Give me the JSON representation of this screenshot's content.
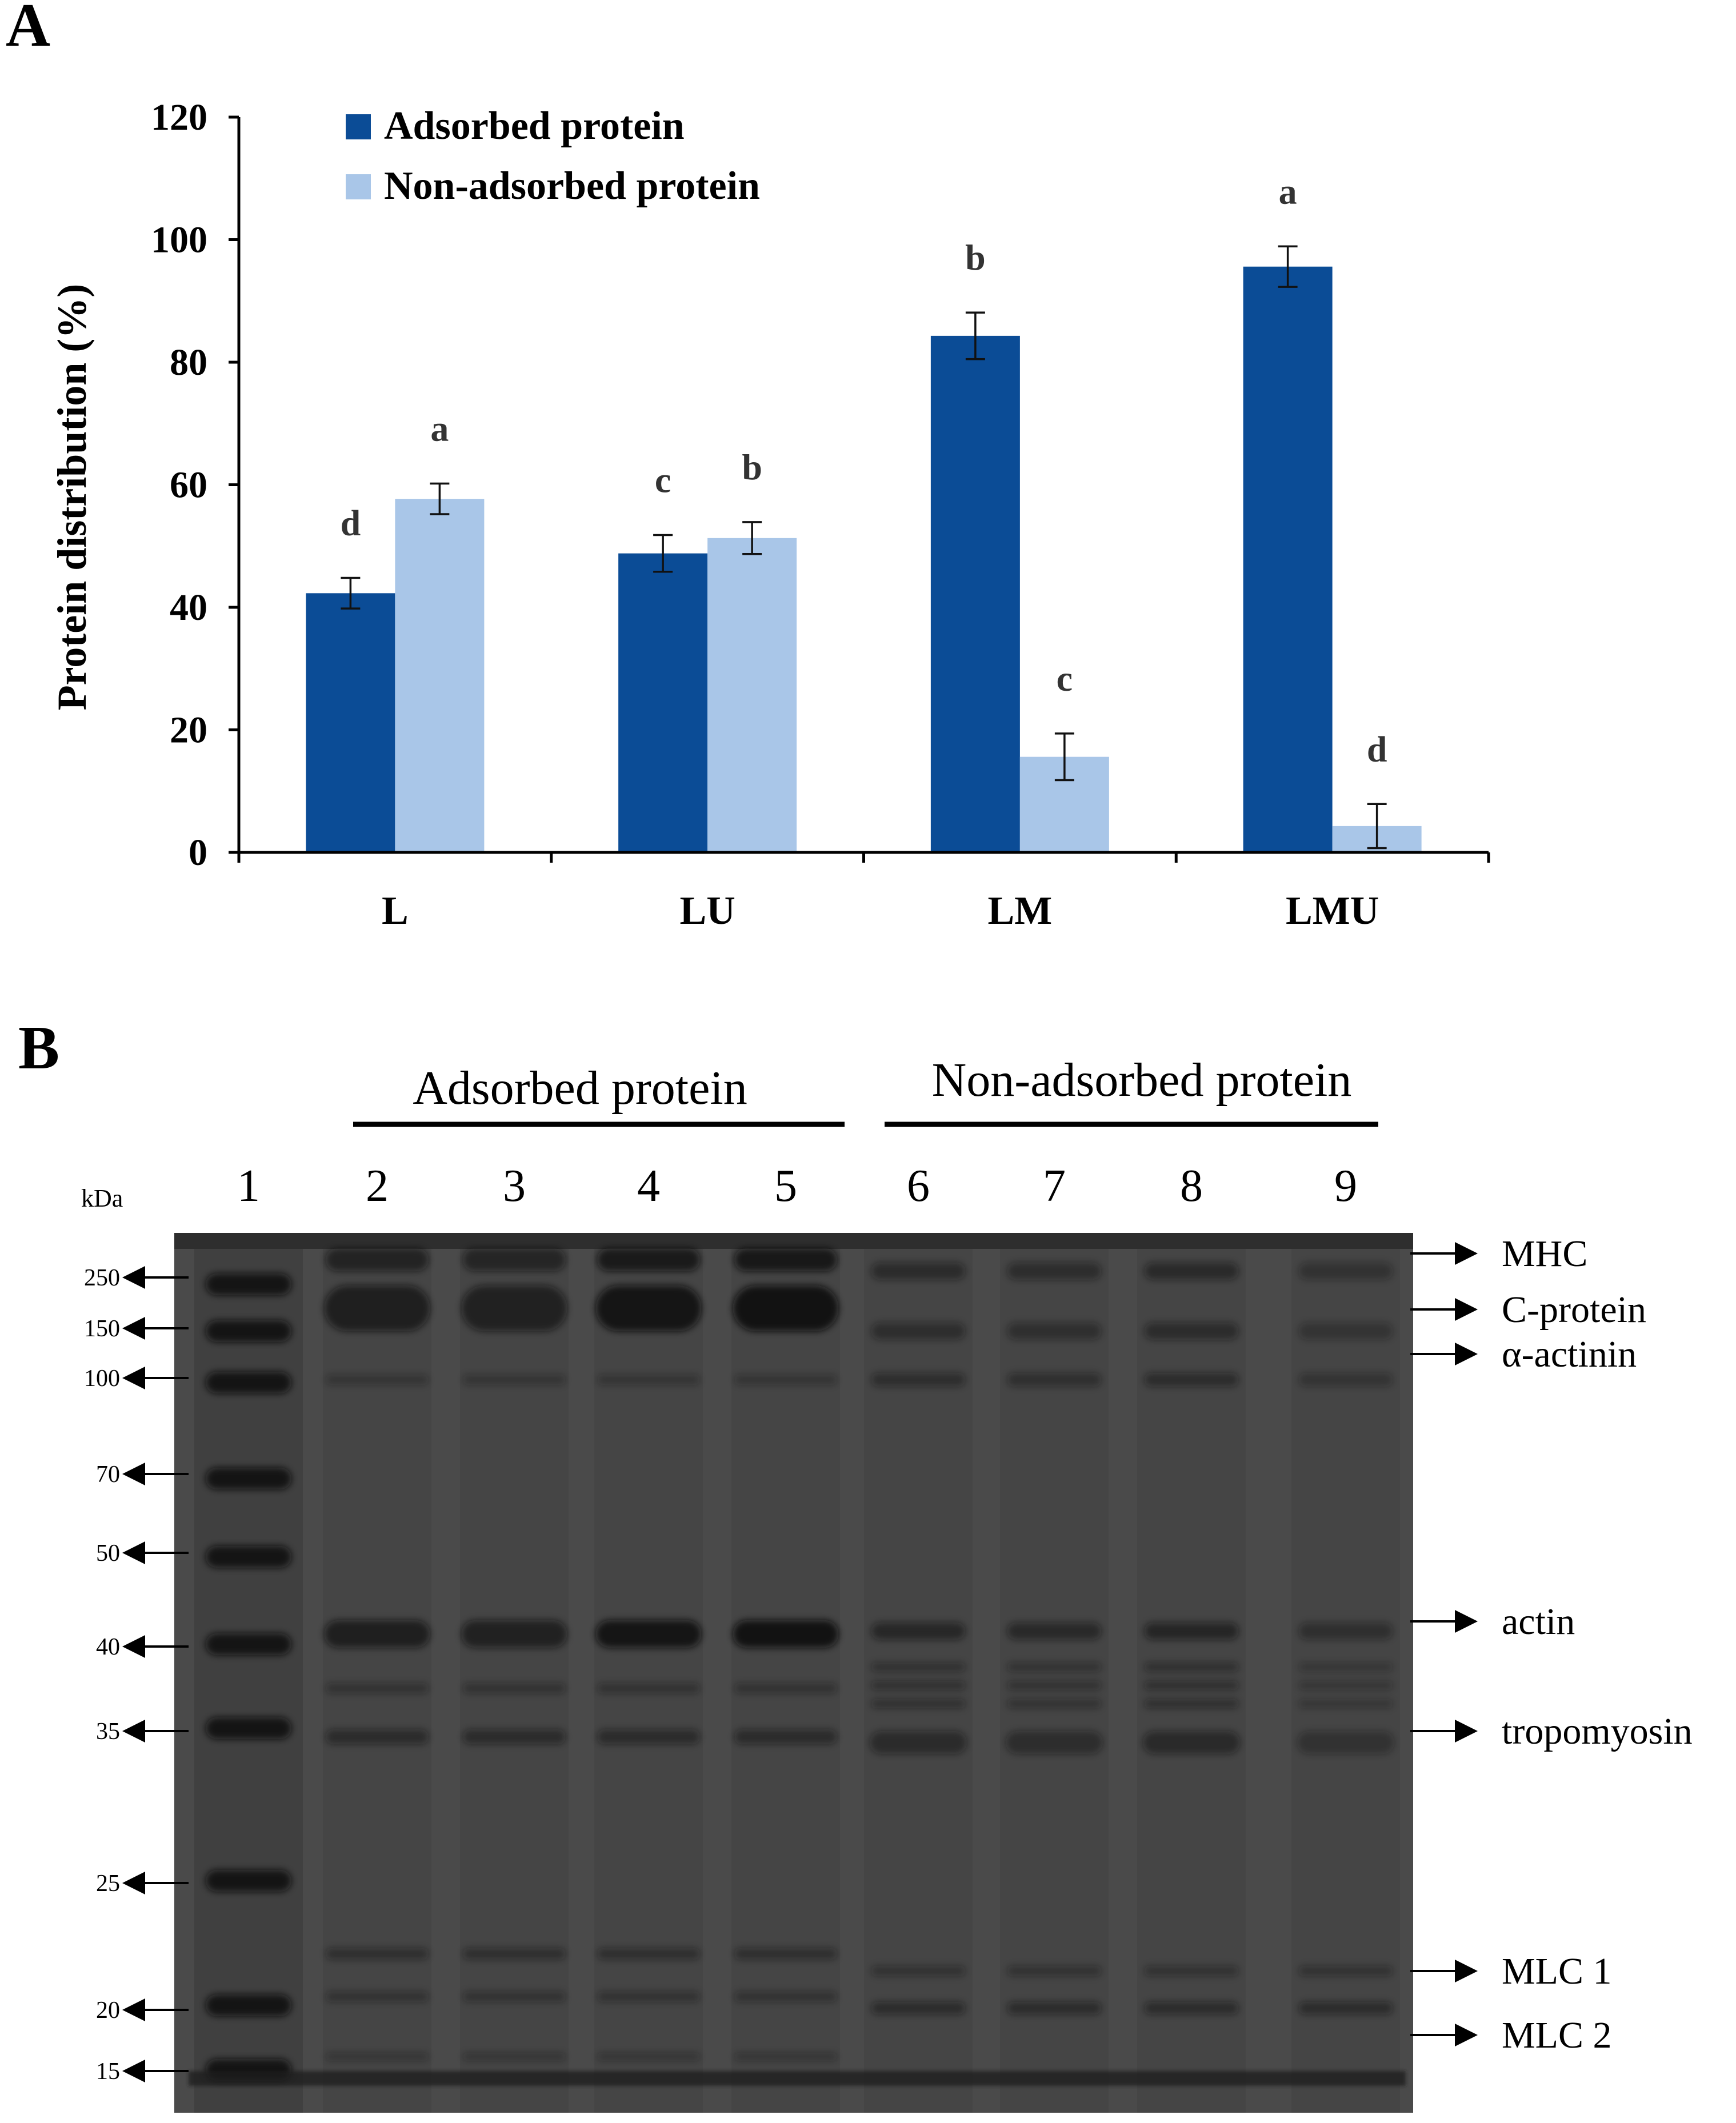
{
  "panel_a": {
    "letter": "A"
  },
  "panel_b": {
    "letter": "B"
  },
  "chart_data": {
    "type": "bar",
    "categories": [
      "L",
      "LU",
      "LM",
      "LMU"
    ],
    "ylabel": "Protein distribution (%)",
    "xlabel": "",
    "ylim": [
      0,
      120
    ],
    "yticks": [
      "0",
      "20",
      "40",
      "60",
      "80",
      "100",
      "120"
    ],
    "legend_position": "top-left",
    "series": [
      {
        "name": "Adsorbed protein",
        "color": "#0b4c96",
        "values": [
          42.3,
          48.8,
          84.3,
          95.6
        ],
        "errors": [
          2.5,
          3.0,
          3.8,
          3.3
        ],
        "letters": [
          "d",
          "c",
          "b",
          "a"
        ]
      },
      {
        "name": "Non-adsorbed protein",
        "color": "#a9c6e8",
        "values": [
          57.7,
          51.3,
          15.6,
          4.3
        ],
        "errors": [
          2.5,
          2.6,
          3.8,
          3.6
        ],
        "letters": [
          "a",
          "b",
          "c",
          "d"
        ]
      }
    ]
  },
  "gel": {
    "group_adsorbed": "Adsorbed protein",
    "group_non_adsorbed": "Non-adsorbed protein",
    "kda_label": "kDa",
    "lanes": [
      "1",
      "2",
      "3",
      "4",
      "5",
      "6",
      "7",
      "8",
      "9"
    ],
    "markers": [
      "250",
      "150",
      "100",
      "70",
      "50",
      "40",
      "35",
      "25",
      "20",
      "15"
    ],
    "bands": [
      "MHC",
      "C-protein",
      "α-actinin",
      "actin",
      "tropomyosin",
      "MLC 1",
      "MLC 2"
    ]
  }
}
